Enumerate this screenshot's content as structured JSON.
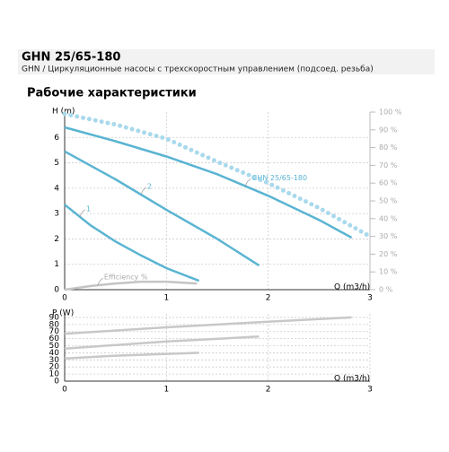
{
  "header": {
    "title": "GHN 25/65-180",
    "subtitle": "GHN / Циркуляционные насосы с трехскоростным управлением (подсоед. резьба)",
    "section": "Рабочие характеристики"
  },
  "chart_data": [
    {
      "type": "line",
      "ylabel": "H (m)",
      "xlabel": "Q (m3/h)",
      "xlim": [
        0,
        3
      ],
      "xticks": [
        0,
        1,
        2,
        3
      ],
      "ylim": [
        0,
        7
      ],
      "yticks": [
        0,
        1,
        2,
        3,
        4,
        5,
        6
      ],
      "y2lim": [
        0,
        100
      ],
      "y2ticks": [
        {
          "value": 0,
          "label": "0 %"
        },
        {
          "value": 10,
          "label": "10 %"
        },
        {
          "value": 20,
          "label": "20 %"
        },
        {
          "value": 30,
          "label": "30 %"
        },
        {
          "value": 40,
          "label": "40 %"
        },
        {
          "value": 50,
          "label": "50 %"
        },
        {
          "value": 60,
          "label": "60 %"
        },
        {
          "value": 70,
          "label": "70 %"
        },
        {
          "value": 80,
          "label": "80 %"
        },
        {
          "value": 90,
          "label": "90 %"
        },
        {
          "value": 100,
          "label": "100 %"
        }
      ],
      "grid": true,
      "series": [
        {
          "name": "GHN 25/65-180",
          "color": "#5ab4d2",
          "x": [
            0,
            0.5,
            1,
            1.5,
            2,
            2.5,
            2.82
          ],
          "values": [
            6.4,
            5.85,
            5.25,
            4.55,
            3.7,
            2.75,
            2.05
          ]
        },
        {
          "name": "2",
          "color": "#5ab4d2",
          "x": [
            0,
            0.5,
            1,
            1.5,
            1.91
          ],
          "values": [
            5.45,
            4.35,
            3.15,
            2.0,
            0.95
          ]
        },
        {
          "name": "1",
          "color": "#5ab4d2",
          "x": [
            0,
            0.25,
            0.5,
            0.75,
            1,
            1.32
          ],
          "values": [
            3.35,
            2.55,
            1.9,
            1.35,
            0.85,
            0.35
          ]
        },
        {
          "color": "#a9d9ec",
          "style": "dotted",
          "axis": "y2",
          "x": [
            0,
            0.5,
            1,
            1.5,
            2,
            2.5,
            3
          ],
          "values": [
            99,
            93,
            85,
            72,
            60,
            46,
            30
          ]
        },
        {
          "name": "Efficiency %",
          "color": "#c4c4c4",
          "axis": "y2",
          "x": [
            0,
            0.25,
            0.5,
            0.75,
            1,
            1.3
          ],
          "values": [
            0,
            2,
            3.5,
            4.5,
            4.5,
            3.5
          ]
        }
      ]
    },
    {
      "type": "line",
      "ylabel": "P (W)",
      "xlabel": "Q (m3/h)",
      "xlim": [
        0,
        3
      ],
      "xticks": [
        0,
        1,
        2,
        3
      ],
      "ylim": [
        0,
        95
      ],
      "yticks": [
        0,
        10,
        20,
        30,
        40,
        50,
        60,
        70,
        80,
        90
      ],
      "grid": true,
      "series": [
        {
          "color": "#c8c8c8",
          "x": [
            0,
            1,
            2,
            2.82
          ],
          "values": [
            67,
            76,
            84,
            90
          ]
        },
        {
          "color": "#c8c8c8",
          "x": [
            0,
            1,
            1.91
          ],
          "values": [
            46,
            56,
            63
          ]
        },
        {
          "color": "#c8c8c8",
          "x": [
            0,
            0.5,
            1.32
          ],
          "values": [
            32,
            36,
            40
          ]
        }
      ]
    }
  ]
}
